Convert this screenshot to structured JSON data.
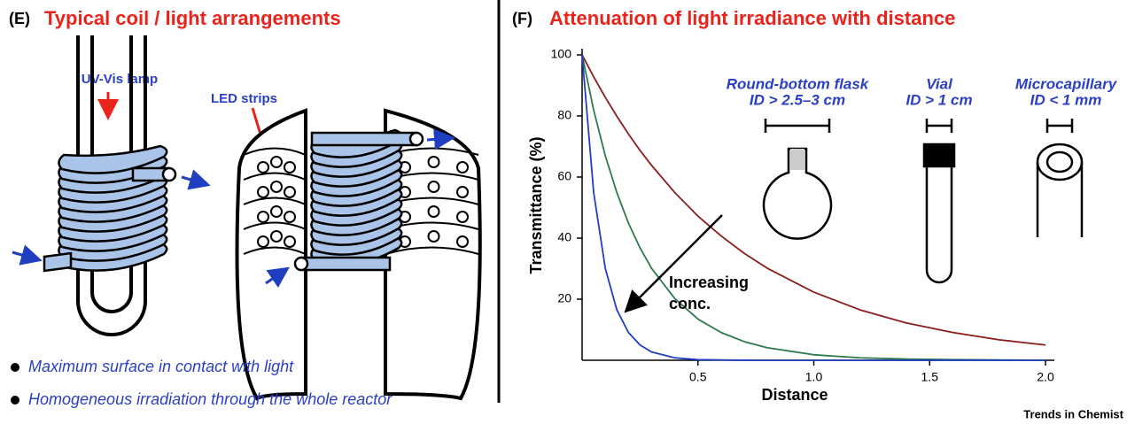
{
  "panel_e": {
    "label": "(E)",
    "title": "Typical coil / light arrangements",
    "lamp_label": "UV-Vis lamp",
    "led_label": "LED strips",
    "bullets": [
      "Maximum surface in contact with light",
      "Homogeneous irradiation through the whole reactor"
    ]
  },
  "chart_data": {
    "type": "line",
    "panel_label": "(F)",
    "title": "Attenuation of light irradiance with distance",
    "x_label": "Distance",
    "y_label": "Transmittance (%)",
    "x": [
      0,
      0.05,
      0.1,
      0.15,
      0.2,
      0.25,
      0.3,
      0.4,
      0.5,
      0.6,
      0.7,
      0.8,
      1.0,
      1.2,
      1.4,
      1.6,
      1.8,
      2.0
    ],
    "series": [
      {
        "color": "#8b1c1c",
        "values": [
          100,
          92.8,
          86.1,
          79.9,
          74.1,
          68.7,
          63.8,
          54.9,
          47.2,
          40.7,
          35.0,
          30.1,
          22.3,
          16.5,
          12.2,
          9.1,
          6.7,
          5.0
        ]
      },
      {
        "color": "#2e7a4e",
        "values": [
          100,
          81.9,
          67.0,
          54.9,
          44.9,
          36.8,
          30.1,
          20.2,
          13.5,
          9.1,
          6.1,
          4.1,
          1.8,
          0.8,
          0.4,
          0.2,
          0.1,
          0.0
        ]
      },
      {
        "color": "#1f3fc0",
        "values": [
          100,
          54.9,
          30.1,
          16.5,
          9.1,
          5.0,
          2.7,
          0.8,
          0.2,
          0.1,
          0,
          0,
          0,
          0,
          0,
          0,
          0,
          0
        ]
      }
    ],
    "xlim": [
      0,
      2
    ],
    "ylim": [
      0,
      100
    ],
    "xticks": [
      0.5,
      {
        "value": 1,
        "label": "1.0"
      },
      1.5,
      {
        "value": 2,
        "label": "2.0"
      }
    ],
    "yticks": [
      20,
      40,
      60,
      80,
      100
    ],
    "annotations": [
      "Increasing",
      "conc."
    ],
    "vessels": [
      {
        "name": "Round-bottom flask",
        "size": "ID > 2.5–3 cm"
      },
      {
        "name": "Vial",
        "size": "ID > 1 cm"
      },
      {
        "name": "Microcapillary",
        "size": "ID < 1 mm"
      }
    ]
  },
  "footer": "Trends in Chemist"
}
